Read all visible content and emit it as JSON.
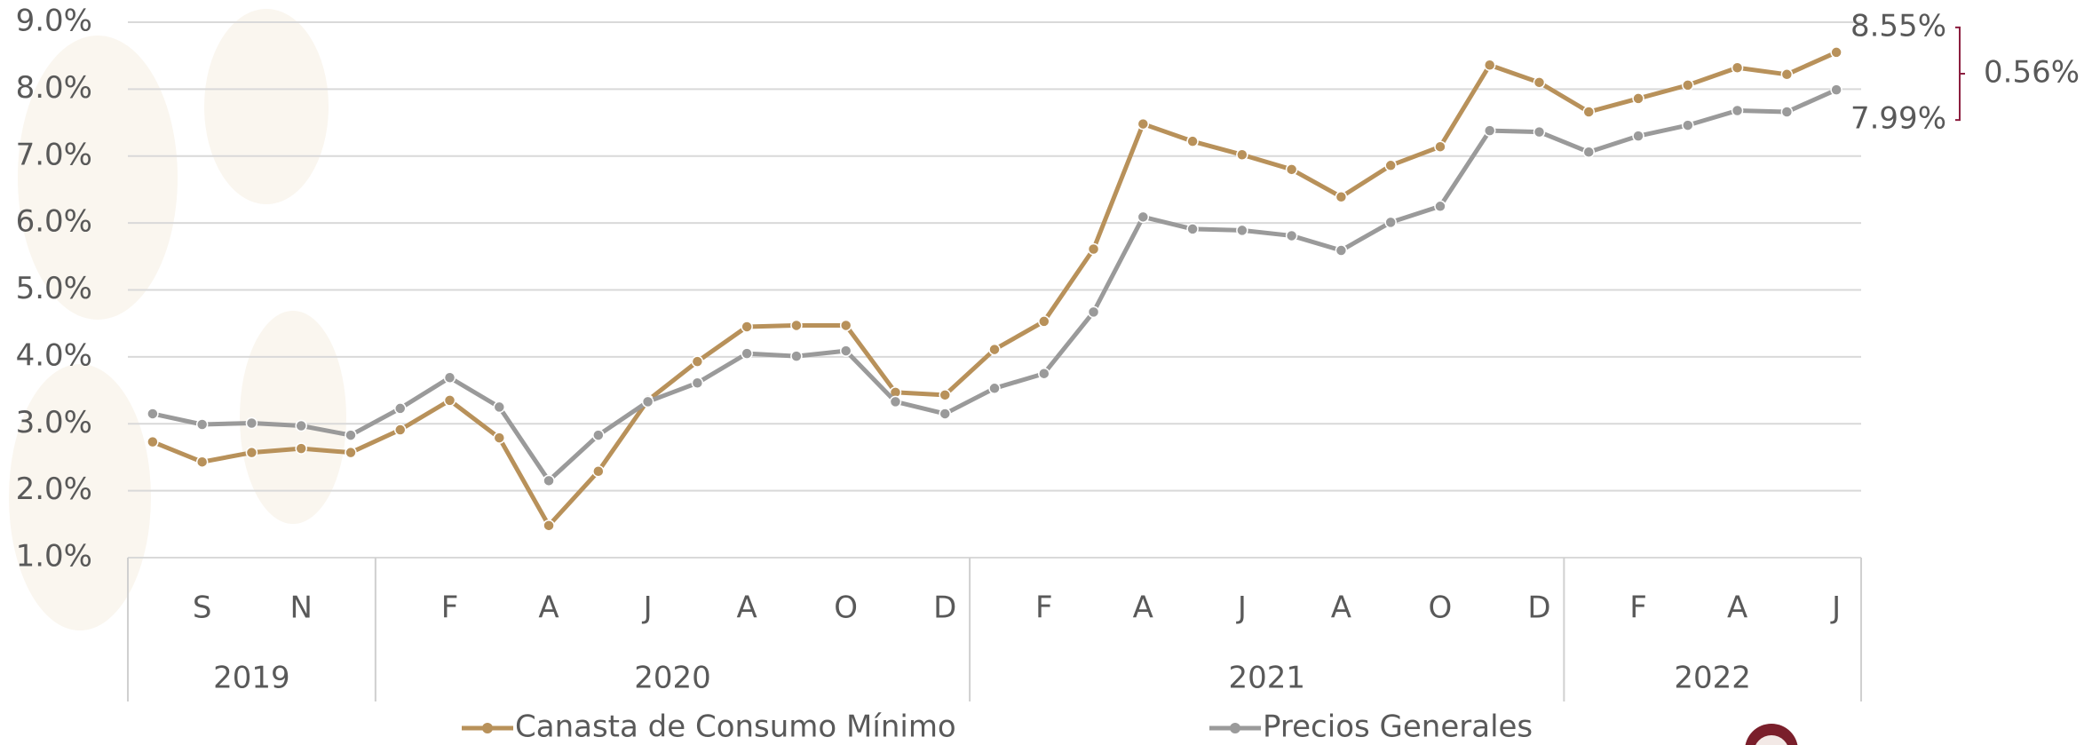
{
  "chart_data": {
    "type": "line",
    "categories": [
      null,
      "S",
      null,
      "N",
      null,
      null,
      "F",
      null,
      "A",
      null,
      "J",
      null,
      "A",
      null,
      "O",
      null,
      "D",
      null,
      "F",
      null,
      "A",
      null,
      "J",
      null,
      "A",
      null,
      "O",
      null,
      "D",
      null,
      "F",
      null,
      "A",
      null,
      "J"
    ],
    "groups": [
      {
        "label": "2019",
        "span": 5
      },
      {
        "label": "2020",
        "span": 12
      },
      {
        "label": "2021",
        "span": 12
      },
      {
        "label": "2022",
        "span": 6
      }
    ],
    "series": [
      {
        "name": "Canasta de Consumo Mínimo",
        "color": "#b8915a",
        "values": [
          2.73,
          2.43,
          2.57,
          2.63,
          2.57,
          2.91,
          3.35,
          2.79,
          1.48,
          2.29,
          3.35,
          3.93,
          4.45,
          4.47,
          4.47,
          3.47,
          3.43,
          4.11,
          4.53,
          5.61,
          7.48,
          7.22,
          7.02,
          6.8,
          6.39,
          6.86,
          7.14,
          8.36,
          8.1,
          7.66,
          7.86,
          8.06,
          8.32,
          8.22,
          8.55
        ],
        "value_labels": [
          null,
          null,
          null,
          null,
          null,
          null,
          null,
          null,
          null,
          null,
          null,
          null,
          null,
          null,
          null,
          null,
          null,
          null,
          null,
          null,
          null,
          null,
          null,
          null,
          null,
          null,
          null,
          null,
          null,
          null,
          null,
          null,
          null,
          null,
          "8.55%"
        ]
      },
      {
        "name": "Precios Generales",
        "color": "#9a9a9a",
        "values": [
          3.15,
          2.99,
          3.01,
          2.97,
          2.83,
          3.23,
          3.69,
          3.25,
          2.15,
          2.83,
          3.33,
          3.61,
          4.05,
          4.01,
          4.09,
          3.33,
          3.15,
          3.53,
          3.75,
          4.67,
          6.09,
          5.91,
          5.89,
          5.81,
          5.59,
          6.01,
          6.25,
          7.38,
          7.36,
          7.06,
          7.3,
          7.46,
          7.68,
          7.66,
          7.99
        ],
        "value_labels": [
          null,
          null,
          null,
          null,
          null,
          null,
          null,
          null,
          null,
          null,
          null,
          null,
          null,
          null,
          null,
          null,
          null,
          null,
          null,
          null,
          null,
          null,
          null,
          null,
          null,
          null,
          null,
          null,
          null,
          null,
          null,
          null,
          null,
          null,
          "7.99%"
        ]
      }
    ],
    "annotation": "0.56%",
    "ylim": [
      1,
      9
    ],
    "yticks": [
      {
        "value": 1,
        "label": "1.0%"
      },
      {
        "value": 2,
        "label": "2.0%"
      },
      {
        "value": 3,
        "label": "3.0%"
      },
      {
        "value": 4,
        "label": "4.0%"
      },
      {
        "value": 5,
        "label": "5.0%"
      },
      {
        "value": 6,
        "label": "6.0%"
      },
      {
        "value": 7,
        "label": "7.0%"
      },
      {
        "value": 8,
        "label": "8.0%"
      },
      {
        "value": 9,
        "label": "9.0%"
      }
    ],
    "grid": true
  }
}
